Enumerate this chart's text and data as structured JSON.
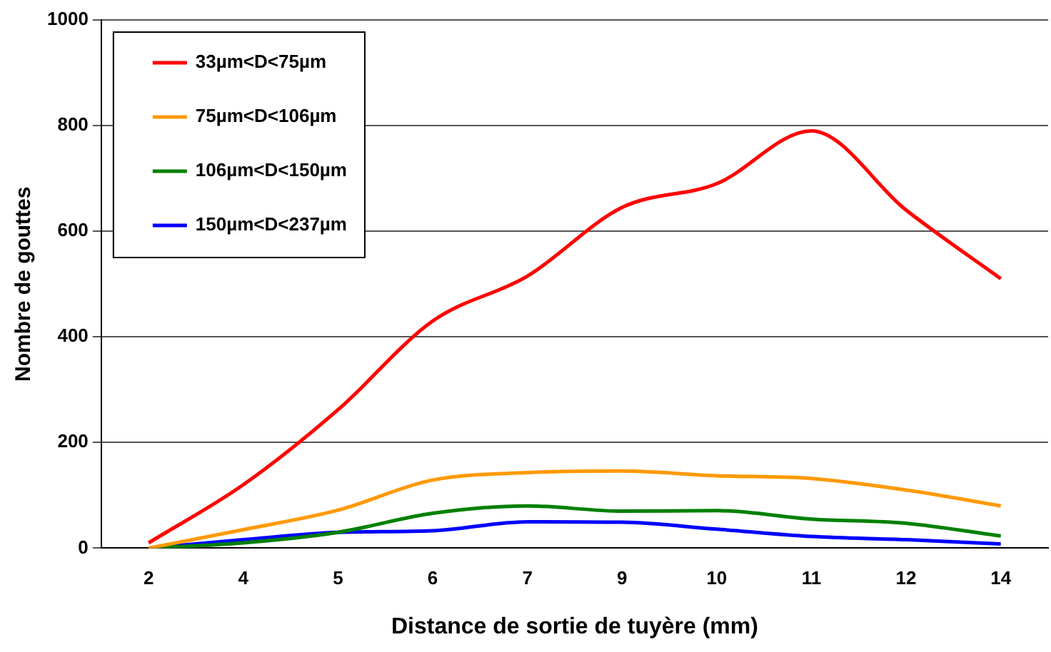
{
  "chart_data": {
    "type": "line",
    "xlabel": "Distance de sortie de tuyère (mm)",
    "ylabel": "Nombre de gouttes",
    "categories": [
      "2",
      "4",
      "5",
      "6",
      "7",
      "9",
      "10",
      "11",
      "12",
      "14"
    ],
    "series": [
      {
        "name": "33µm<D<75µm",
        "color": "#ff0000",
        "values": [
          10,
          120,
          262,
          430,
          515,
          645,
          690,
          790,
          640,
          510
        ]
      },
      {
        "name": "75µm<D<106µm",
        "color": "#ff9900",
        "values": [
          0,
          35,
          72,
          129,
          143,
          146,
          137,
          132,
          110,
          80
        ]
      },
      {
        "name": "106µm<D<150µm",
        "color": "#008000",
        "values": [
          0,
          10,
          30,
          66,
          80,
          70,
          71,
          55,
          47,
          23
        ]
      },
      {
        "name": "150µm<D<237µm",
        "color": "#0000ff",
        "values": [
          0,
          16,
          30,
          33,
          50,
          49,
          36,
          22,
          16,
          8
        ]
      }
    ],
    "ylim": [
      0,
      1000
    ],
    "yticks": [
      0,
      200,
      400,
      600,
      800,
      1000
    ],
    "grid": "y",
    "legend": "top left",
    "marker": "none",
    "line_style": "solid"
  }
}
